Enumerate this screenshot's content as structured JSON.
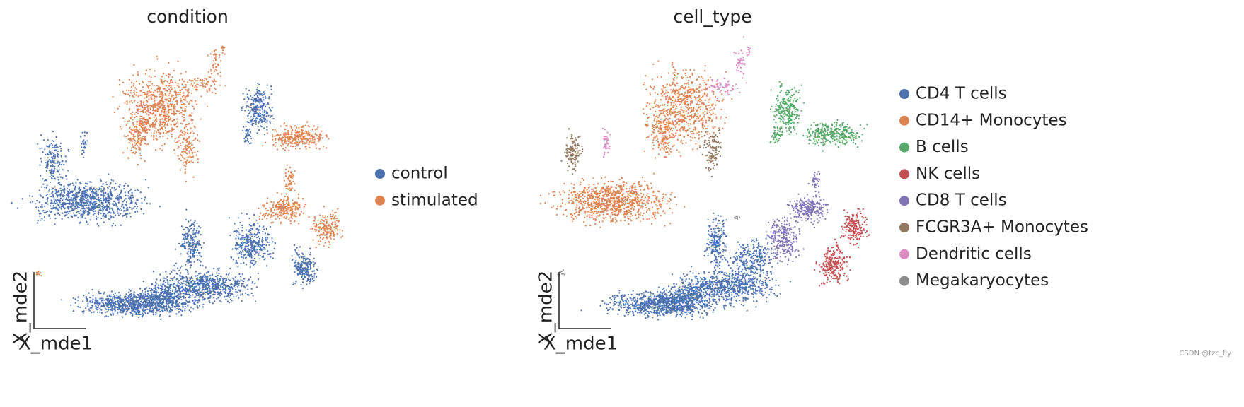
{
  "chart_data": [
    {
      "type": "embedding",
      "title": "condition",
      "x_label": "X_mde1",
      "y_label": "X_mde2",
      "series": [
        {
          "name": "control",
          "color": "#4c72b0"
        },
        {
          "name": "stimulated",
          "color": "#dd8452"
        }
      ]
    },
    {
      "type": "embedding",
      "title": "cell_type",
      "x_label": "X_mde1",
      "y_label": "X_mde2",
      "series": [
        {
          "name": "CD4 T cells",
          "color": "#4c72b0"
        },
        {
          "name": "CD14+ Monocytes",
          "color": "#dd8452"
        },
        {
          "name": "B cells",
          "color": "#55a868"
        },
        {
          "name": "NK cells",
          "color": "#c44e52"
        },
        {
          "name": "CD8 T cells",
          "color": "#8172b3"
        },
        {
          "name": "FCGR3A+ Monocytes",
          "color": "#937860"
        },
        {
          "name": "Dendritic cells",
          "color": "#da8bc3"
        },
        {
          "name": "Megakaryocytes",
          "color": "#8c8c8c"
        }
      ]
    }
  ],
  "watermark": "CSDN @tzc_fly"
}
